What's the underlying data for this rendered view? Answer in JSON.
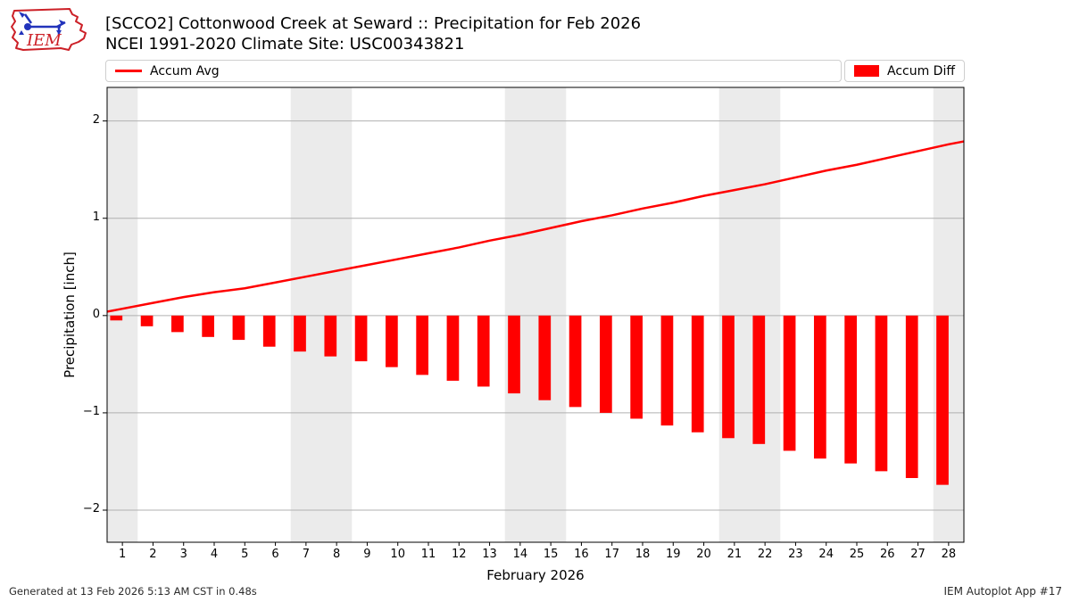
{
  "header": {
    "logo_text": "IEM"
  },
  "legend": {
    "note": "left box holds line legend, right box holds bar legend"
  },
  "chart_data": {
    "type": "combo",
    "title": "[SCCO2] Cottonwood Creek at Seward :: Precipitation for Feb 2026",
    "subtitle": "NCEI 1991-2020 Climate Site: USC00343821",
    "xlabel": "February 2026",
    "ylabel": "Precipitation [inch]",
    "xlim": [
      0.5,
      28.5
    ],
    "ylim": [
      -2.33,
      2.345
    ],
    "yticks": [
      2,
      1,
      0,
      -1,
      -2
    ],
    "ytick_labels": [
      "2",
      "1",
      "0",
      "−1",
      "−2"
    ],
    "x_ticks": [
      1,
      2,
      3,
      4,
      5,
      6,
      7,
      8,
      9,
      10,
      11,
      12,
      13,
      14,
      15,
      16,
      17,
      18,
      19,
      20,
      21,
      22,
      23,
      24,
      25,
      26,
      27,
      28
    ],
    "grid": "horizontal-only",
    "legend_position": "top-row",
    "weekend_bands": [
      [
        0.5,
        1.5
      ],
      [
        6.5,
        8.5
      ],
      [
        13.5,
        15.5
      ],
      [
        20.5,
        22.5
      ],
      [
        27.5,
        28.5
      ]
    ],
    "series": [
      {
        "name": "Accum Avg",
        "type": "line",
        "color": "#ff0000",
        "x": [
          0.5,
          1,
          2,
          3,
          4,
          5,
          6,
          7,
          8,
          9,
          10,
          11,
          12,
          13,
          14,
          15,
          16,
          17,
          18,
          19,
          20,
          21,
          22,
          23,
          24,
          25,
          26,
          27,
          28,
          28.5
        ],
        "values": [
          0.04,
          0.07,
          0.13,
          0.19,
          0.24,
          0.28,
          0.34,
          0.4,
          0.46,
          0.52,
          0.58,
          0.64,
          0.7,
          0.77,
          0.83,
          0.9,
          0.97,
          1.03,
          1.1,
          1.16,
          1.23,
          1.29,
          1.35,
          1.42,
          1.49,
          1.55,
          1.62,
          1.69,
          1.76,
          1.79
        ]
      },
      {
        "name": "Accum Diff",
        "type": "bar",
        "color": "#ff0000",
        "x": [
          1,
          2,
          3,
          4,
          5,
          6,
          7,
          8,
          9,
          10,
          11,
          12,
          13,
          14,
          15,
          16,
          17,
          18,
          19,
          20,
          21,
          22,
          23,
          24,
          25,
          26,
          27,
          28
        ],
        "values": [
          -0.05,
          -0.11,
          -0.17,
          -0.22,
          -0.25,
          -0.32,
          -0.37,
          -0.42,
          -0.47,
          -0.53,
          -0.61,
          -0.67,
          -0.73,
          -0.8,
          -0.87,
          -0.94,
          -1.0,
          -1.06,
          -1.13,
          -1.2,
          -1.26,
          -1.32,
          -1.39,
          -1.47,
          -1.52,
          -1.6,
          -1.67,
          -1.74
        ]
      }
    ]
  },
  "footer": {
    "left": "Generated at 13 Feb 2026 5:13 AM CST in 0.48s",
    "right": "IEM Autoplot App #17"
  },
  "colors": {
    "series_red": "#ff0000",
    "grid": "#b0b0b0",
    "weekend_band": "#ebebeb",
    "spine": "#000000",
    "legend_border": "#cfcfcf",
    "logo_red": "#cc2027",
    "logo_blue": "#2233bb"
  }
}
